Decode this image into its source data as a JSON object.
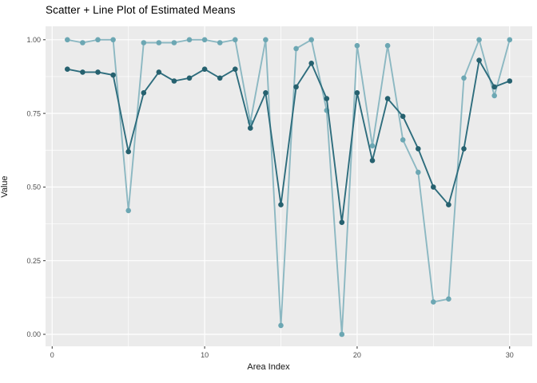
{
  "title": "Scatter + Line Plot of Estimated Means",
  "x_axis": {
    "label": "Area Index",
    "tick_labels": [
      "0",
      "10",
      "20",
      "30"
    ],
    "tick_values": [
      0,
      10,
      20,
      30
    ]
  },
  "y_axis": {
    "label": "Value",
    "tick_labels": [
      "0.00",
      "0.25",
      "0.50",
      "0.75",
      "1.00"
    ],
    "tick_values": [
      0,
      0.25,
      0.5,
      0.75,
      1.0
    ]
  },
  "colors": {
    "panel_background": "#ebebeb",
    "grid": "#ffffff",
    "tick_label": "#4d4d4d",
    "tick_mark": "#333333",
    "dark_series_line": "#2e6d7d",
    "dark_series_point": "#26616f",
    "light_series_line": "#8cb8c2",
    "light_series_point": "#6ca7b3"
  },
  "chart_data": {
    "type": "line",
    "title": "Scatter + Line Plot of Estimated Means",
    "xlabel": "Area Index",
    "ylabel": "Value",
    "x": [
      1,
      2,
      3,
      4,
      5,
      6,
      7,
      8,
      9,
      10,
      11,
      12,
      13,
      14,
      15,
      16,
      17,
      18,
      19,
      20,
      21,
      22,
      23,
      24,
      25,
      26,
      27,
      28,
      29,
      30
    ],
    "series": [
      {
        "name": "light-teal-series",
        "values": [
          1.0,
          0.99,
          1.0,
          1.0,
          0.42,
          0.99,
          0.99,
          0.99,
          1.0,
          1.0,
          0.99,
          1.0,
          0.72,
          1.0,
          0.03,
          0.97,
          1.0,
          0.76,
          0.0,
          0.98,
          0.64,
          0.98,
          0.66,
          0.55,
          0.11,
          0.12,
          0.87,
          1.0,
          0.81,
          1.0
        ]
      },
      {
        "name": "dark-teal-series",
        "values": [
          0.9,
          0.89,
          0.89,
          0.88,
          0.62,
          0.82,
          0.89,
          0.86,
          0.87,
          0.9,
          0.87,
          0.9,
          0.7,
          0.82,
          0.44,
          0.84,
          0.92,
          0.8,
          0.38,
          0.82,
          0.59,
          0.8,
          0.74,
          0.63,
          0.5,
          0.44,
          0.63,
          0.93,
          0.84,
          0.86
        ]
      }
    ],
    "xlim": [
      -0.433,
      31.48
    ],
    "ylim": [
      -0.0406,
      1.0455
    ],
    "x_major_gridlines": [
      0,
      10,
      20,
      30
    ],
    "x_minor_gridlines": [
      5,
      15,
      25
    ],
    "y_major_gridlines": [
      0,
      0.25,
      0.5,
      0.75,
      1.0
    ],
    "y_minor_gridlines": [
      0.125,
      0.375,
      0.625,
      0.875
    ],
    "grid": true,
    "legend": "none",
    "marker": "circle-on-line"
  }
}
